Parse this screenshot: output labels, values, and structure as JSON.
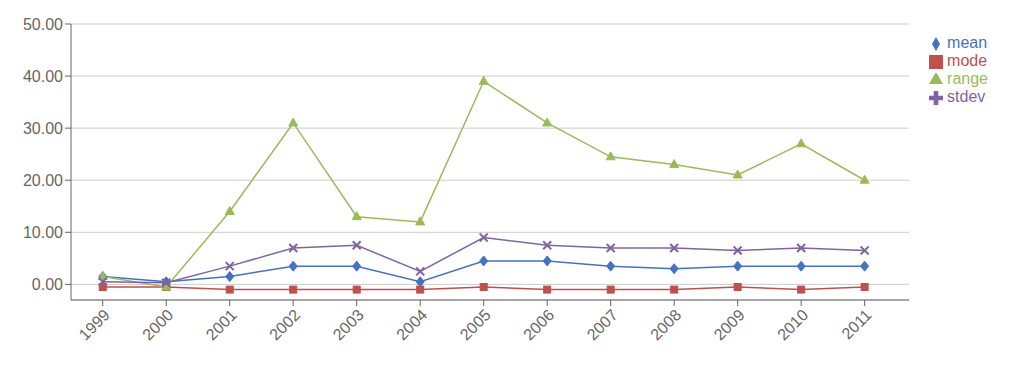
{
  "chart_data": {
    "type": "line",
    "x": [
      1999,
      2000,
      2001,
      2002,
      2003,
      2004,
      2005,
      2006,
      2007,
      2008,
      2009,
      2010,
      2011
    ],
    "series": [
      {
        "name": "mean",
        "color": "#4472c4",
        "marker": "diamond",
        "values": [
          1.5,
          0.5,
          1.5,
          3.5,
          3.5,
          0.5,
          4.5,
          4.5,
          3.5,
          3.0,
          3.5,
          3.5,
          3.5
        ]
      },
      {
        "name": "mode",
        "color": "#c0504d",
        "marker": "square",
        "values": [
          -0.5,
          -0.5,
          -1.0,
          -1.0,
          -1.0,
          -1.0,
          -0.5,
          -1.0,
          -1.0,
          -1.0,
          -0.5,
          -1.0,
          -0.5
        ]
      },
      {
        "name": "range",
        "color": "#9bbb59",
        "marker": "triangle",
        "values": [
          1.5,
          -0.5,
          14.0,
          31.0,
          13.0,
          12.0,
          39.0,
          31.0,
          24.5,
          23.0,
          21.0,
          27.0,
          20.0
        ]
      },
      {
        "name": "stdev",
        "color": "#8064a2",
        "marker": "x",
        "values": [
          0.5,
          0.3,
          3.5,
          7.0,
          7.5,
          2.5,
          9.0,
          7.5,
          7.0,
          7.0,
          6.5,
          7.0,
          6.5
        ]
      }
    ],
    "xlim": [
      1998.5,
      2011.7
    ],
    "xticks": [
      1999,
      2000,
      2001,
      2002,
      2003,
      2004,
      2005,
      2006,
      2007,
      2008,
      2009,
      2010,
      2011
    ],
    "ylim": [
      -3.0,
      50.0
    ],
    "yticks": [
      {
        "value": 0,
        "label": "0.00"
      },
      {
        "value": 10,
        "label": "10.00"
      },
      {
        "value": 20,
        "label": "20.00"
      },
      {
        "value": 30,
        "label": "30.00"
      },
      {
        "value": 40,
        "label": "40.00"
      },
      {
        "value": 50,
        "label": "50.00"
      }
    ],
    "grid": true,
    "legend": "right"
  }
}
